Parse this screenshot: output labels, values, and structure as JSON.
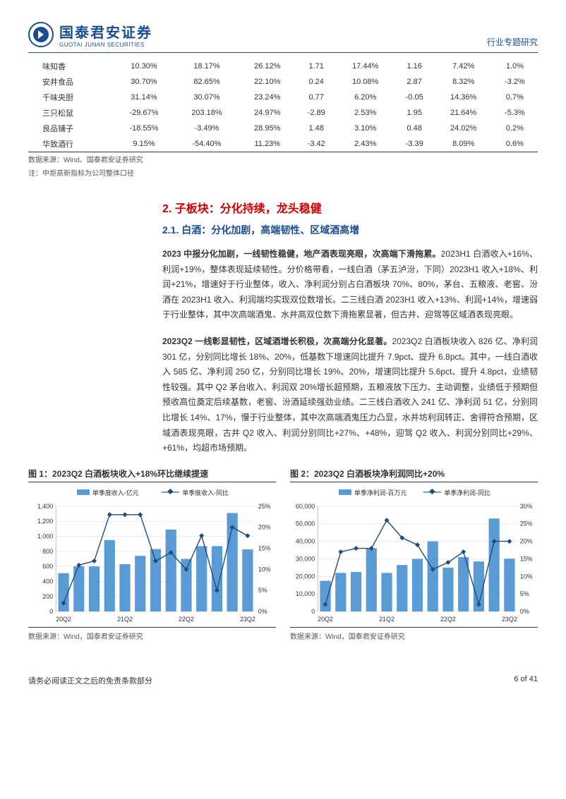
{
  "header": {
    "logo_cn": "国泰君安证券",
    "logo_en": "GUOTAI JUNAN SECURITIES",
    "right": "行业专题研究"
  },
  "table": {
    "rows": [
      [
        "味知香",
        "10.30%",
        "18.17%",
        "26.12%",
        "1.71",
        "17.44%",
        "1.16",
        "7.42%",
        "1.0%"
      ],
      [
        "安井食品",
        "30.70%",
        "82.65%",
        "22.10%",
        "0.24",
        "10.08%",
        "2.87",
        "8.32%",
        "-3.2%"
      ],
      [
        "千味央厨",
        "31.14%",
        "30.07%",
        "23.24%",
        "0.77",
        "6.20%",
        "-0.05",
        "14.36%",
        "0.7%"
      ],
      [
        "三只松鼠",
        "-29.67%",
        "203.18%",
        "24.97%",
        "-2.89",
        "2.53%",
        "1.95",
        "21.64%",
        "-5.3%"
      ],
      [
        "良品铺子",
        "-18.55%",
        "-3.49%",
        "28.95%",
        "1.48",
        "3.10%",
        "0.48",
        "24.02%",
        "0.2%"
      ],
      [
        "华致酒行",
        "9.15%",
        "-54.40%",
        "11.23%",
        "-3.42",
        "2.43%",
        "-3.39",
        "8.09%",
        "0.6%"
      ]
    ],
    "source": "数据来源：Wind、国泰君安证券研究",
    "note": "注：中炬高新指标为公司整体口径"
  },
  "section2": {
    "heading": "2. 子板块：分化持续，龙头稳健",
    "sub1_heading": "2.1. 白酒：分化加剧，高端韧性、区域酒高增",
    "para1_bold": "2023 中报分化加剧，一线韧性稳健，地产酒表现亮眼，次高端下滑拖累。",
    "para1_rest": "2023H1 白酒收入+16%、利润+19%，整体表现延续韧性。分价格带看，一线白酒（茅五泸汾，下同）2023H1 收入+18%、利润+21%，增速好于行业整体，收入、净利润分别占白酒板块 70%、80%，茅台、五粮液、老窖、汾酒在 2023H1 收入、利润端均实现双位数增长。二三线白酒 2023H1 收入+13%、利润+14%，增速弱于行业整体，其中次高端酒鬼、水井高双位数下滑拖累显著，但古井、迎驾等区域酒表现亮眼。",
    "para2_bold": "2023Q2 一线彰显韧性，区域酒增长积极，次高端分化显著。",
    "para2_rest": "2023Q2 白酒板块收入 826 亿、净利润 301 亿，分别同比增长 18%、20%，低基数下增速同比提升 7.9pct、提升 6.8pct。其中，一线白酒收入 585 亿、净利润 250 亿，分别同比增长 19%、20%，增速同比提升 5.6pct、提升 4.8pct，业绩韧性较强。其中 Q2 茅台收入、利润双 20%增长超预期，五粮液放下压力、主动调整，业绩低于预期但预收高位奠定后续基数，老窖、汾酒延续强劲业绩。二三线白酒收入 241 亿、净利润 51 亿，分别同比增长 14%、17%，慢于行业整体，其中次高端酒鬼压力凸显，水井坊利润转正、舍得符合预期，区域酒表现亮眼，古井 Q2 收入、利润分别同比+27%、+48%，迎驾 Q2 收入、利润分别同比+29%、+61%，均超市场预期。"
  },
  "chart1": {
    "title": "图 1：2023Q2 白酒板块收入+18%环比继续提速",
    "legend_bar": "单季度收入-亿元",
    "legend_line": "单季度收入-同比",
    "y_left_max": 1400,
    "y_left_step": 200,
    "y_right_max": 25,
    "y_right_step": 5,
    "x_labels": [
      "20Q2",
      "21Q2",
      "22Q2",
      "23Q2"
    ],
    "bars": [
      510,
      600,
      600,
      950,
      630,
      740,
      830,
      1090,
      700,
      870,
      870,
      1310,
      826
    ],
    "line": [
      2,
      11,
      12,
      23,
      23,
      23,
      12,
      14,
      10,
      18,
      5,
      20,
      18
    ],
    "bar_color": "#5b9bd5",
    "line_color": "#1f4e79",
    "grid_color": "#d9d9d9",
    "source": "数据来源：Wind，国泰君安证券研究"
  },
  "chart2": {
    "title": "图 2：2023Q2 白酒板块净利润同比+20%",
    "legend_bar": "单季净利润-百万元",
    "legend_line": "单季净利润-同比",
    "y_left_max": 60000,
    "y_left_step": 10000,
    "y_right_max": 30,
    "y_right_step": 5,
    "x_labels": [
      "20Q2",
      "21Q2",
      "22Q2",
      "23Q2"
    ],
    "bars": [
      17500,
      22000,
      22500,
      36000,
      22000,
      26500,
      30000,
      40000,
      25000,
      31000,
      28500,
      53000,
      30100
    ],
    "line": [
      2,
      17,
      18,
      18,
      26,
      21,
      19,
      12,
      14,
      17,
      2,
      20,
      20
    ],
    "bar_color": "#5b9bd5",
    "line_color": "#1f4e79",
    "grid_color": "#d9d9d9",
    "source": "数据来源：Wind，国泰君安证券研究"
  },
  "footer": {
    "disclaimer": "请务必阅读正文之后的免责条款部分",
    "page": "6 of 41"
  }
}
